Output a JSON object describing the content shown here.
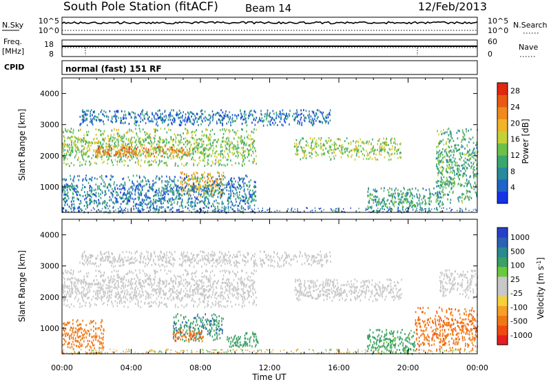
{
  "header": {
    "station": "South Pole Station (fitACF)",
    "beam": "Beam 14",
    "date": "12/Feb/2013"
  },
  "top_panels": {
    "nsky_label": "N.Sky",
    "nsky_ticks": [
      "10^5",
      "10^0"
    ],
    "nsearch_label": "N.Search",
    "nsearch_ticks": [
      "10^5",
      "10^0"
    ],
    "freq_label": "Freq.",
    "freq_unit": "[MHz]",
    "freq_ticks": [
      "18",
      "8"
    ],
    "nave_label": "Nave",
    "nave_ticks": [
      "60",
      "0"
    ],
    "cpid_label": "CPID",
    "cpid_text": "normal (fast) 151 RF"
  },
  "colors": {
    "power_scale": [
      "#1432e6",
      "#1e64c8",
      "#2a8a9a",
      "#3aa86e",
      "#6cc04a",
      "#c4d23a",
      "#f0b428",
      "#f08a1e",
      "#e85a14",
      "#e02810"
    ],
    "velocity_scale": [
      "#e61e1e",
      "#f04a14",
      "#f07814",
      "#f5a028",
      "#f5d23a",
      "#c8c8c8",
      "#c8c8c8",
      "#6cc83c",
      "#3aa064",
      "#2a8a8c",
      "#2a62b4",
      "#2840c8"
    ]
  },
  "chart_data": [
    {
      "type": "heatmap",
      "name": "power",
      "ylabel": "Slant Range [km]",
      "xlabel": "Time UT",
      "xlim": [
        "00:00",
        "24:00"
      ],
      "ylim": [
        180,
        4500
      ],
      "x_ticks": [
        "00:00",
        "04:00",
        "08:00",
        "12:00",
        "16:00",
        "20:00",
        "00:00"
      ],
      "y_ticks": [
        1000,
        2000,
        3000,
        4000
      ],
      "colorbar_label": "Power [dB]",
      "colorbar_ticks": [
        "4",
        "8",
        "12",
        "16",
        "20",
        "24",
        "28"
      ],
      "colorbar_range": [
        0,
        30
      ],
      "bands": [
        {
          "t": [
            0.0,
            11.2
          ],
          "range_km": [
            1700,
            2900
          ],
          "value": 14
        },
        {
          "t": [
            1.8,
            7.5
          ],
          "range_km": [
            2000,
            2350
          ],
          "value": 23
        },
        {
          "t": [
            6.8,
            9.3
          ],
          "range_km": [
            700,
            1500
          ],
          "value": 20
        },
        {
          "t": [
            0.0,
            11.2
          ],
          "range_km": [
            200,
            1400
          ],
          "value": 7
        },
        {
          "t": [
            13.4,
            19.6
          ],
          "range_km": [
            1900,
            2600
          ],
          "value": 15
        },
        {
          "t": [
            17.6,
            22.0
          ],
          "range_km": [
            200,
            1000
          ],
          "value": 10
        },
        {
          "t": [
            21.6,
            24.0
          ],
          "range_km": [
            500,
            2900
          ],
          "value": 11
        },
        {
          "t": [
            1.0,
            15.5
          ],
          "range_km": [
            3000,
            3500
          ],
          "value": 6
        }
      ]
    },
    {
      "type": "heatmap",
      "name": "velocity",
      "ylabel": "Slant Range [km]",
      "xlabel": "Time UT",
      "xlim": [
        "00:00",
        "24:00"
      ],
      "ylim": [
        180,
        4500
      ],
      "x_ticks": [
        "00:00",
        "04:00",
        "08:00",
        "12:00",
        "16:00",
        "20:00",
        "00:00"
      ],
      "y_ticks": [
        1000,
        2000,
        3000,
        4000
      ],
      "colorbar_label": "Velocity [m s",
      "colorbar_unit_sup": "-1",
      "colorbar_unit_close": "]",
      "colorbar_ticks": [
        "1000",
        "500",
        "100",
        "25",
        "-25",
        "-100",
        "-500",
        "-1000"
      ],
      "bands": [
        {
          "t": [
            0.0,
            11.2
          ],
          "range_km": [
            1700,
            2900
          ],
          "value": 0
        },
        {
          "t": [
            13.4,
            19.6
          ],
          "range_km": [
            1900,
            2600
          ],
          "value": 0
        },
        {
          "t": [
            0.0,
            2.4
          ],
          "range_km": [
            200,
            1300
          ],
          "value": -300
        },
        {
          "t": [
            6.4,
            9.3
          ],
          "range_km": [
            600,
            1500
          ],
          "value": 450
        },
        {
          "t": [
            6.4,
            8.2
          ],
          "range_km": [
            600,
            1000
          ],
          "value": -400
        },
        {
          "t": [
            9.5,
            11.3
          ],
          "range_km": [
            300,
            900
          ],
          "value": 200
        },
        {
          "t": [
            17.6,
            20.4
          ],
          "range_km": [
            200,
            1000
          ],
          "value": 150
        },
        {
          "t": [
            20.4,
            24.0
          ],
          "range_km": [
            300,
            1700
          ],
          "value": -400
        },
        {
          "t": [
            21.8,
            24.0
          ],
          "range_km": [
            2000,
            2900
          ],
          "value": 0
        },
        {
          "t": [
            1.0,
            15.5
          ],
          "range_km": [
            3000,
            3500
          ],
          "value": 0
        }
      ]
    }
  ]
}
